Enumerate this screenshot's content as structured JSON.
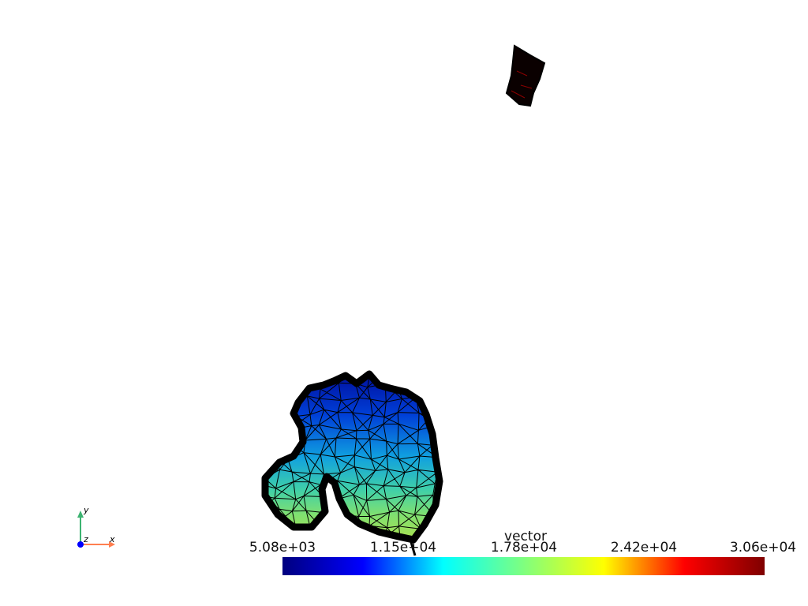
{
  "scalar_bar": {
    "title": "vector",
    "tick_labels": [
      "5.08e+03",
      "1.15e+04",
      "1.78e+04",
      "2.42e+04",
      "3.06e+04"
    ],
    "range": [
      5080,
      30600
    ],
    "colormap": "jet",
    "colors": [
      "#00007f",
      "#0000ff",
      "#00ffff",
      "#7fff7f",
      "#ffff00",
      "#ff0000",
      "#7f0000"
    ]
  },
  "orientation_axes": {
    "x_label": "x",
    "y_label": "y",
    "z_label": "z",
    "colors": {
      "x": "#ff7f50",
      "y": "#3cb371",
      "z": "#0000ff"
    }
  },
  "scene": {
    "background": "#ffffff",
    "mesh_edge_color": "#000000",
    "objects": [
      "main-mesh",
      "small-mesh"
    ]
  }
}
